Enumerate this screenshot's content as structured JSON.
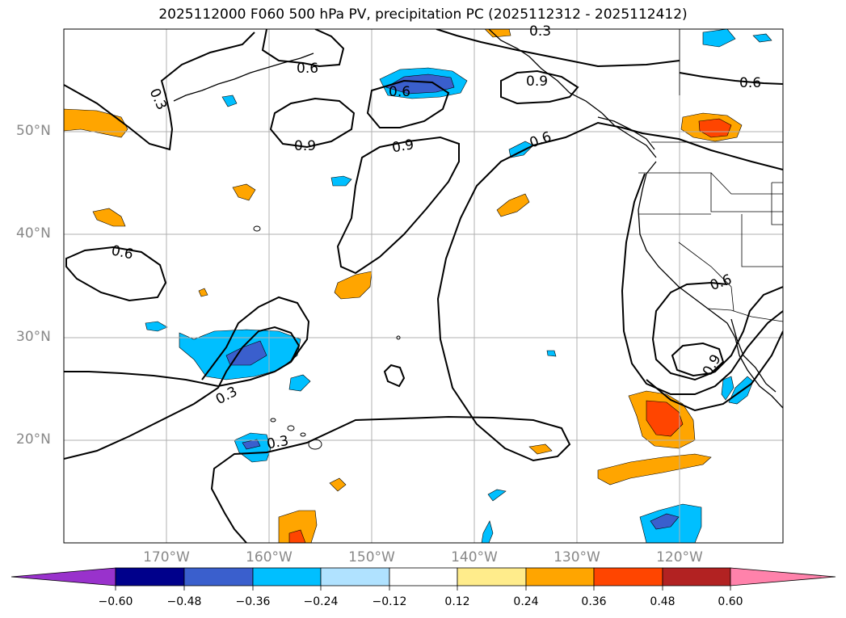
{
  "title": "2025112000 F060 500 hPa PV, precipitation PC (2025112312 - 2025112412)",
  "axes": {
    "lat_labels": [
      "50°N",
      "40°N",
      "30°N",
      "20°N"
    ],
    "lon_labels": [
      "170°W",
      "160°W",
      "150°W",
      "140°W",
      "130°W",
      "120°W"
    ]
  },
  "contour_labels": {
    "c1": "0.3",
    "c2": "0.6",
    "c3": "0.9",
    "c4": "0.6",
    "c5": "0.9",
    "c6": "0.9",
    "c7": "0.6",
    "c8": "0.3",
    "c9": "0.3",
    "c10": "0.6",
    "c11": "0.9",
    "c12": "0.6",
    "c13": "0.3",
    "c14": "0.6"
  },
  "colorbar": {
    "ticks": [
      "−0.60",
      "−0.48",
      "−0.36",
      "−0.24",
      "−0.12",
      "0.12",
      "0.24",
      "0.36",
      "0.48",
      "0.60"
    ],
    "colors": [
      "#9932cc",
      "#00008b",
      "#3a5fcd",
      "#00bfff",
      "#b0e2ff",
      "#ffffff",
      "#ffec8b",
      "#ffa500",
      "#ff4500",
      "#b22222",
      "#ff82ab"
    ]
  }
}
